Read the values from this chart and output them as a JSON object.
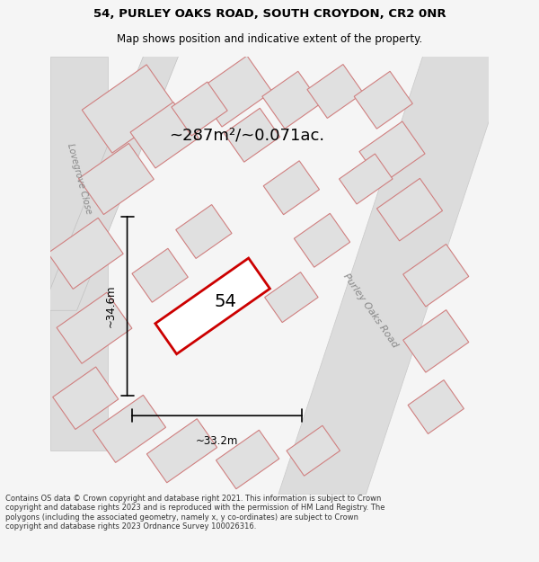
{
  "title_line1": "54, PURLEY OAKS ROAD, SOUTH CROYDON, CR2 0NR",
  "title_line2": "Map shows position and indicative extent of the property.",
  "area_text": "~287m²/~0.071ac.",
  "dim_height": "~34.6m",
  "dim_width": "~33.2m",
  "plot_number": "54",
  "road_label": "Purley Oaks Road",
  "street_label": "Lovegrove Close",
  "footer_text": "Contains OS data © Crown copyright and database right 2021. This information is subject to Crown copyright and database rights 2023 and is reproduced with the permission of HM Land Registry. The polygons (including the associated geometry, namely x, y co-ordinates) are subject to Crown copyright and database rights 2023 Ordnance Survey 100026316.",
  "bg_color": "#f5f5f5",
  "map_bg_color": "#f0f0f0",
  "plot_color_face": "#ffffff",
  "plot_color_edge": "#cc0000",
  "road_fill": "#e8e8e8",
  "road_stroke": "#e8a0a0",
  "building_fill": "#e0e0e0",
  "building_stroke": "#d08080"
}
